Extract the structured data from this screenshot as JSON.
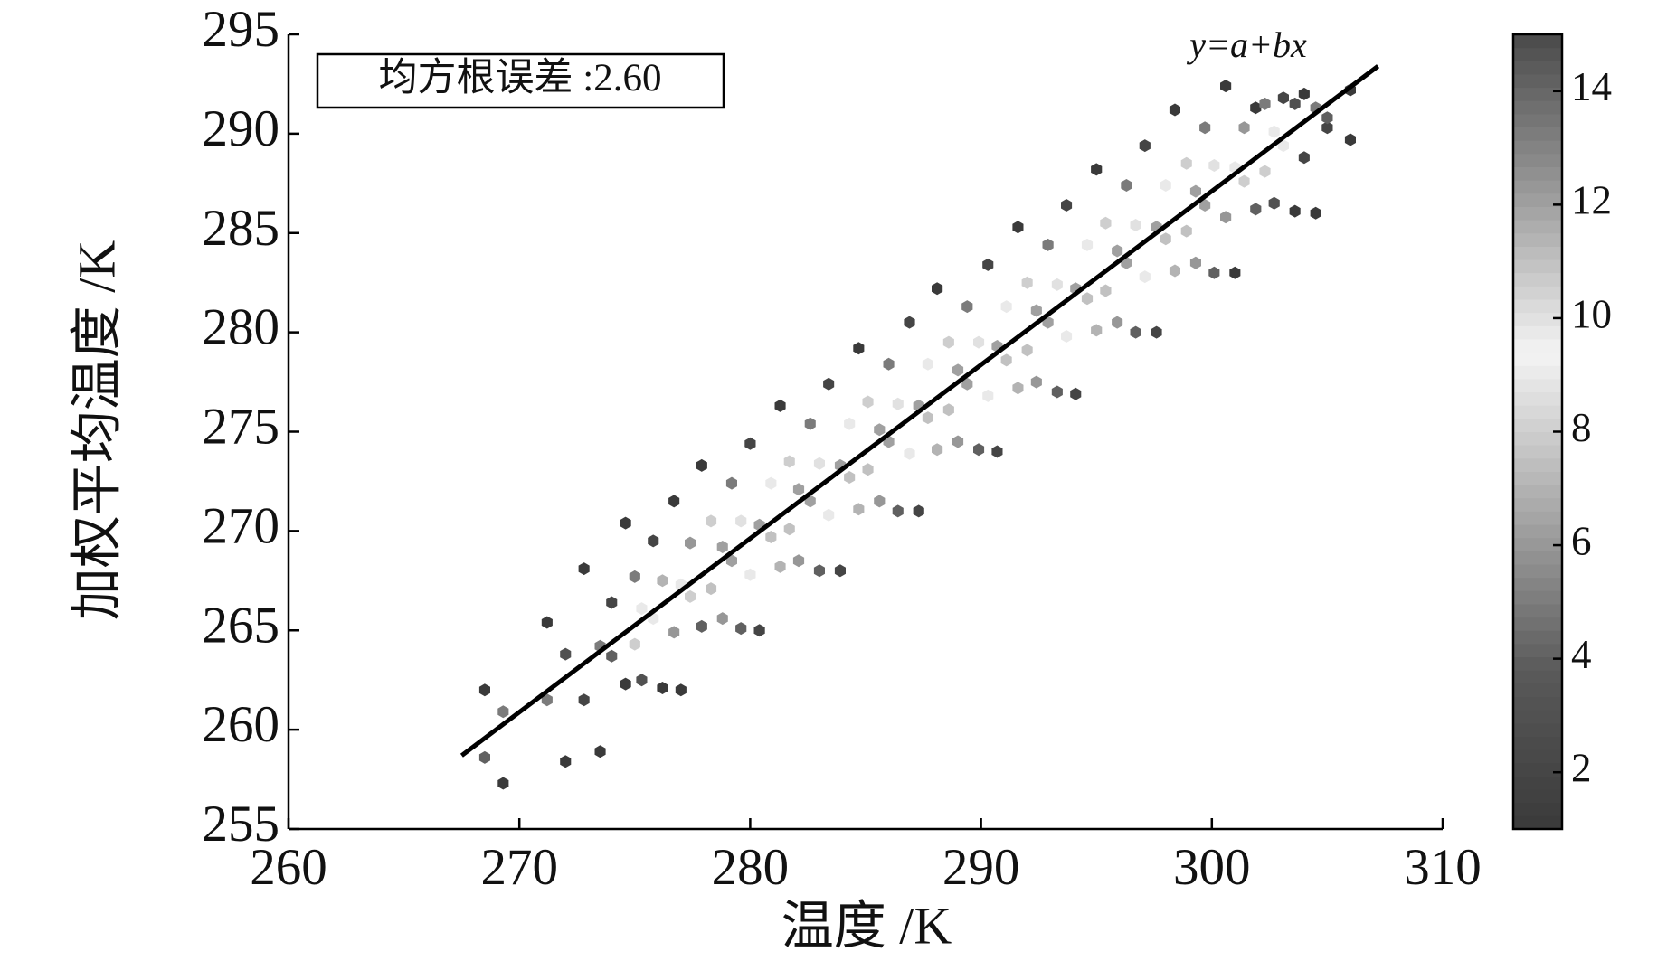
{
  "chart_data": {
    "type": "scatter",
    "x_label": "温度 /K",
    "y_label": "加权平均温度 /K",
    "annotation": "均方根误差 :2.60",
    "xlim": [
      260,
      310
    ],
    "xticks": [
      260,
      270,
      280,
      290,
      300,
      310
    ],
    "ylim": [
      255,
      295
    ],
    "yticks": [
      255,
      260,
      265,
      270,
      275,
      280,
      285,
      290,
      295
    ],
    "fit_line": {
      "label": "y=a+bx",
      "x": [
        267.5,
        307.2
      ],
      "y": [
        258.7,
        293.4
      ],
      "color": "#000000"
    },
    "colorbar": {
      "clim": [
        1,
        15
      ],
      "ticks": [
        2,
        4,
        6,
        8,
        10,
        12,
        14
      ],
      "colormap": [
        "#3a3a3a",
        "#5a5a5a",
        "#a8a8a8",
        "#f4f4f4",
        "#9a9a9a",
        "#4a4a4a"
      ]
    },
    "series": [
      {
        "x": [
          268.5,
          269.3,
          271.2,
          272.0,
          272.8,
          273.5,
          274.0,
          274.6,
          275.0,
          275.3,
          275.8,
          276.2,
          276.7,
          277.0,
          277.4,
          277.9,
          278.3,
          278.8,
          279.2,
          279.6,
          280.0,
          280.4,
          280.9,
          281.3,
          281.7,
          282.1,
          282.6,
          283.0,
          283.4,
          283.9,
          284.3,
          284.7,
          285.1,
          285.6,
          286.0,
          286.4,
          286.9,
          287.3,
          287.7,
          288.1,
          288.6,
          289.0,
          289.4,
          289.9,
          290.3,
          290.7,
          291.1,
          291.6,
          292.0,
          292.4,
          292.9,
          293.3,
          293.7,
          294.1,
          294.6,
          295.0,
          295.4,
          295.9,
          296.3,
          296.7,
          297.1,
          297.6,
          298.0,
          298.4,
          298.9,
          299.3,
          299.7,
          300.1,
          300.6,
          301.0,
          301.4,
          301.9,
          302.3,
          302.7,
          303.1,
          303.6,
          304.0,
          304.5,
          305.0,
          306.0,
          268.5,
          269.3,
          271.2,
          272.0,
          272.8,
          273.5,
          274.0,
          274.6,
          275.0,
          275.3,
          275.8,
          276.2,
          276.7,
          277.0,
          277.4,
          277.9,
          278.3,
          278.8,
          279.2,
          279.6,
          280.0,
          280.4,
          280.9,
          281.3,
          281.7,
          282.1,
          282.6,
          283.0,
          283.4,
          283.9,
          284.3,
          284.7,
          285.1,
          285.6,
          286.0,
          286.4,
          286.9,
          287.3,
          287.7,
          288.1,
          288.6,
          289.0,
          289.4,
          289.9,
          290.3,
          290.7,
          291.1,
          291.6,
          292.0,
          292.4,
          292.9,
          293.3,
          293.7,
          294.1,
          294.6,
          295.0,
          295.4,
          295.9,
          296.3,
          296.7,
          297.1,
          297.6,
          298.0,
          298.4,
          298.9,
          299.3,
          299.7,
          300.1,
          300.6,
          301.0,
          301.4,
          301.9,
          302.3,
          302.7,
          303.1,
          303.6,
          304.0,
          304.5,
          305.0,
          306.0
        ],
        "values": [
          262.0,
          260.9,
          265.4,
          263.8,
          268.1,
          264.2,
          266.4,
          270.4,
          267.7,
          266.1,
          269.5,
          267.5,
          271.5,
          267.3,
          269.4,
          273.3,
          270.5,
          269.2,
          272.4,
          270.5,
          274.4,
          270.3,
          272.4,
          276.3,
          273.5,
          272.1,
          275.4,
          273.4,
          277.4,
          273.3,
          275.4,
          279.2,
          276.5,
          275.1,
          278.4,
          276.4,
          280.5,
          276.3,
          278.4,
          282.2,
          279.5,
          278.1,
          281.3,
          279.5,
          283.4,
          279.3,
          281.3,
          285.3,
          282.5,
          281.1,
          284.4,
          282.4,
          286.4,
          282.2,
          284.4,
          288.2,
          285.5,
          284.1,
          287.4,
          285.4,
          289.4,
          285.3,
          287.4,
          291.2,
          288.5,
          287.1,
          290.3,
          288.4,
          292.4,
          288.3,
          290.3,
          291.3,
          291.5,
          290.1,
          291.8,
          291.5,
          292.0,
          291.3,
          290.3,
          292.2,
          258.6,
          257.3,
          261.5,
          258.4,
          261.5,
          258.9,
          263.7,
          262.3,
          264.3,
          262.5,
          265.6,
          262.1,
          264.9,
          262.0,
          266.7,
          265.2,
          267.1,
          265.6,
          268.5,
          265.1,
          267.8,
          265.0,
          269.7,
          268.2,
          270.1,
          268.5,
          271.5,
          268.0,
          270.8,
          268.0,
          272.7,
          271.1,
          273.1,
          271.5,
          274.5,
          271.0,
          273.9,
          271.0,
          275.7,
          274.1,
          276.1,
          274.5,
          277.4,
          274.1,
          276.8,
          274.0,
          278.6,
          277.2,
          279.1,
          277.5,
          280.5,
          277.0,
          279.8,
          276.9,
          281.7,
          280.1,
          282.1,
          280.5,
          283.5,
          280.0,
          282.8,
          280.0,
          284.7,
          283.1,
          285.1,
          283.5,
          286.4,
          283.0,
          285.8,
          283.0,
          287.6,
          286.2,
          288.1,
          286.5,
          289.4,
          286.1,
          288.8,
          286.0,
          290.8,
          289.7
        ],
        "density": [
          1,
          5,
          1,
          3,
          1,
          5,
          2,
          1,
          5,
          9,
          2,
          7,
          1,
          9,
          6,
          1,
          8,
          12,
          5,
          10,
          2,
          12,
          9,
          1,
          8,
          12,
          5,
          10,
          2,
          12,
          9,
          1,
          8,
          12,
          5,
          10,
          2,
          12,
          9,
          1,
          8,
          12,
          5,
          10,
          2,
          12,
          9,
          1,
          8,
          12,
          5,
          10,
          2,
          12,
          9,
          1,
          8,
          12,
          5,
          10,
          2,
          12,
          9,
          1,
          8,
          12,
          5,
          10,
          1,
          9,
          6,
          1,
          5,
          9,
          2,
          3,
          1,
          5,
          2,
          1,
          4,
          1,
          5,
          1,
          2,
          1,
          4,
          1,
          8,
          3,
          9,
          1,
          6,
          1,
          8,
          4,
          11,
          6,
          12,
          4,
          9,
          2,
          11,
          7,
          11,
          6,
          12,
          4,
          9,
          2,
          11,
          7,
          11,
          6,
          12,
          4,
          9,
          2,
          11,
          7,
          11,
          6,
          12,
          4,
          9,
          2,
          11,
          7,
          11,
          6,
          12,
          4,
          9,
          2,
          11,
          7,
          11,
          6,
          12,
          4,
          9,
          2,
          11,
          7,
          11,
          6,
          12,
          4,
          6,
          1,
          8,
          4,
          8,
          3,
          9,
          1,
          2,
          1,
          4,
          1
        ]
      }
    ]
  }
}
